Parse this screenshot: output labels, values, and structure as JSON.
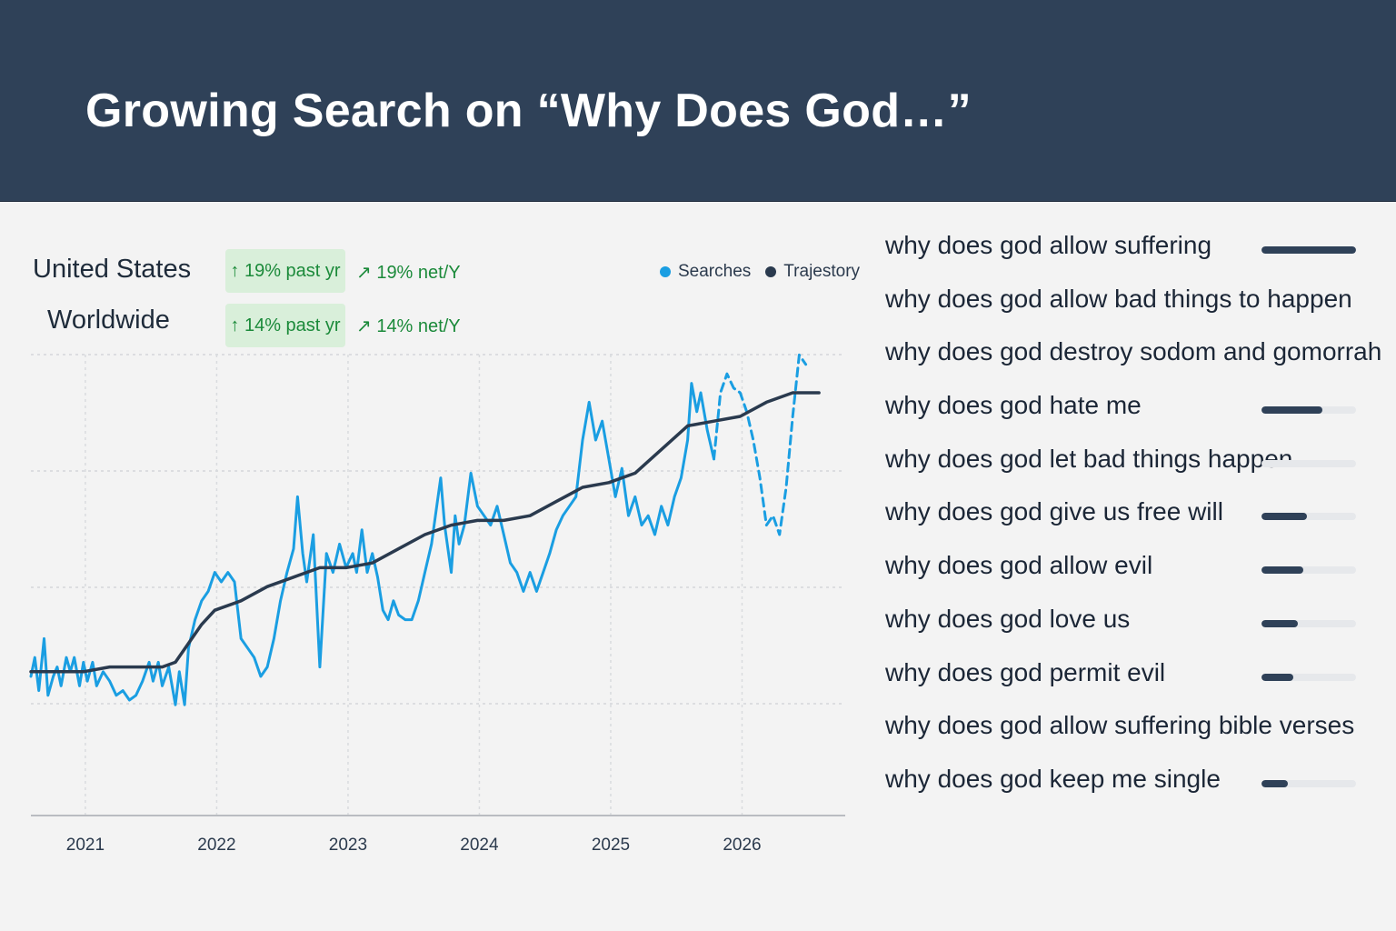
{
  "header": {
    "title": "Growing Search on “Why Does God…”"
  },
  "regions": [
    {
      "name": "United States",
      "badge": "↑ 19% past yr",
      "net": "↗ 19% net/Y"
    },
    {
      "name": "Worldwide",
      "badge": "↑ 14% past yr",
      "net": "↗ 14% net/Y"
    }
  ],
  "colors": {
    "searches": "#1a9ee2",
    "trajectory": "#2a3a4e",
    "banner": "#2f4158",
    "growth": "#1b8a3a"
  },
  "chart_data": {
    "type": "line",
    "x_ticks": [
      "2021",
      "2022",
      "2023",
      "2024",
      "2025",
      "2026"
    ],
    "xlim": [
      2020.8,
      2027.0
    ],
    "ylim": [
      0,
      100
    ],
    "grid": true,
    "legend_position": "top-right",
    "series": [
      {
        "name": "Searches",
        "style": "solid",
        "points": [
          [
            2020.8,
            30
          ],
          [
            2020.83,
            34
          ],
          [
            2020.86,
            27
          ],
          [
            2020.9,
            38
          ],
          [
            2020.93,
            26
          ],
          [
            2020.97,
            30
          ],
          [
            2021.0,
            32
          ],
          [
            2021.03,
            28
          ],
          [
            2021.07,
            34
          ],
          [
            2021.1,
            31
          ],
          [
            2021.13,
            34
          ],
          [
            2021.17,
            28
          ],
          [
            2021.2,
            33
          ],
          [
            2021.23,
            29
          ],
          [
            2021.27,
            33
          ],
          [
            2021.3,
            28
          ],
          [
            2021.35,
            31
          ],
          [
            2021.4,
            29
          ],
          [
            2021.45,
            26
          ],
          [
            2021.5,
            27
          ],
          [
            2021.55,
            25
          ],
          [
            2021.6,
            26
          ],
          [
            2021.65,
            29
          ],
          [
            2021.7,
            33
          ],
          [
            2021.73,
            29
          ],
          [
            2021.77,
            33
          ],
          [
            2021.8,
            28
          ],
          [
            2021.85,
            32
          ],
          [
            2021.9,
            24
          ],
          [
            2021.93,
            31
          ],
          [
            2021.97,
            24
          ],
          [
            2022.0,
            36
          ],
          [
            2022.05,
            42
          ],
          [
            2022.1,
            46
          ],
          [
            2022.15,
            48
          ],
          [
            2022.2,
            52
          ],
          [
            2022.25,
            50
          ],
          [
            2022.3,
            52
          ],
          [
            2022.35,
            50
          ],
          [
            2022.4,
            38
          ],
          [
            2022.45,
            36
          ],
          [
            2022.5,
            34
          ],
          [
            2022.55,
            30
          ],
          [
            2022.6,
            32
          ],
          [
            2022.65,
            38
          ],
          [
            2022.7,
            46
          ],
          [
            2022.75,
            52
          ],
          [
            2022.8,
            57
          ],
          [
            2022.83,
            68
          ],
          [
            2022.87,
            56
          ],
          [
            2022.9,
            50
          ],
          [
            2022.95,
            60
          ],
          [
            2023.0,
            32
          ],
          [
            2023.05,
            56
          ],
          [
            2023.1,
            52
          ],
          [
            2023.15,
            58
          ],
          [
            2023.2,
            53
          ],
          [
            2023.25,
            56
          ],
          [
            2023.28,
            52
          ],
          [
            2023.32,
            61
          ],
          [
            2023.36,
            52
          ],
          [
            2023.4,
            56
          ],
          [
            2023.44,
            51
          ],
          [
            2023.48,
            44
          ],
          [
            2023.52,
            42
          ],
          [
            2023.56,
            46
          ],
          [
            2023.6,
            43
          ],
          [
            2023.65,
            42
          ],
          [
            2023.7,
            42
          ],
          [
            2023.75,
            46
          ],
          [
            2023.8,
            52
          ],
          [
            2023.85,
            58
          ],
          [
            2023.88,
            64
          ],
          [
            2023.92,
            72
          ],
          [
            2023.95,
            62
          ],
          [
            2024.0,
            52
          ],
          [
            2024.03,
            64
          ],
          [
            2024.06,
            58
          ],
          [
            2024.1,
            62
          ],
          [
            2024.15,
            73
          ],
          [
            2024.2,
            66
          ],
          [
            2024.25,
            64
          ],
          [
            2024.3,
            62
          ],
          [
            2024.35,
            66
          ],
          [
            2024.4,
            60
          ],
          [
            2024.45,
            54
          ],
          [
            2024.5,
            52
          ],
          [
            2024.55,
            48
          ],
          [
            2024.6,
            52
          ],
          [
            2024.65,
            48
          ],
          [
            2024.7,
            52
          ],
          [
            2024.75,
            56
          ],
          [
            2024.8,
            61
          ],
          [
            2024.85,
            64
          ],
          [
            2024.9,
            66
          ],
          [
            2024.95,
            68
          ],
          [
            2025.0,
            80
          ],
          [
            2025.05,
            88
          ],
          [
            2025.1,
            80
          ],
          [
            2025.15,
            84
          ],
          [
            2025.2,
            76
          ],
          [
            2025.25,
            68
          ],
          [
            2025.3,
            74
          ],
          [
            2025.35,
            64
          ],
          [
            2025.4,
            68
          ],
          [
            2025.45,
            62
          ],
          [
            2025.5,
            64
          ],
          [
            2025.55,
            60
          ],
          [
            2025.6,
            66
          ],
          [
            2025.65,
            62
          ],
          [
            2025.7,
            68
          ],
          [
            2025.75,
            72
          ],
          [
            2025.8,
            80
          ],
          [
            2025.83,
            92
          ],
          [
            2025.87,
            86
          ],
          [
            2025.9,
            90
          ],
          [
            2025.95,
            82
          ],
          [
            2026.0,
            76
          ]
        ]
      },
      {
        "name": "Searches",
        "style": "dashed",
        "points": [
          [
            2026.0,
            76
          ],
          [
            2026.05,
            90
          ],
          [
            2026.1,
            94
          ],
          [
            2026.15,
            91
          ],
          [
            2026.2,
            90
          ],
          [
            2026.25,
            86
          ],
          [
            2026.3,
            80
          ],
          [
            2026.35,
            72
          ],
          [
            2026.4,
            62
          ],
          [
            2026.45,
            64
          ],
          [
            2026.5,
            60
          ],
          [
            2026.55,
            70
          ],
          [
            2026.6,
            85
          ],
          [
            2026.65,
            98
          ],
          [
            2026.7,
            96
          ]
        ]
      },
      {
        "name": "Trajestory",
        "style": "solid",
        "points": [
          [
            2020.8,
            31
          ],
          [
            2021.0,
            31
          ],
          [
            2021.2,
            31
          ],
          [
            2021.4,
            32
          ],
          [
            2021.6,
            32
          ],
          [
            2021.8,
            32
          ],
          [
            2021.9,
            33
          ],
          [
            2022.0,
            37
          ],
          [
            2022.1,
            41
          ],
          [
            2022.2,
            44
          ],
          [
            2022.4,
            46
          ],
          [
            2022.6,
            49
          ],
          [
            2022.8,
            51
          ],
          [
            2023.0,
            53
          ],
          [
            2023.2,
            53
          ],
          [
            2023.4,
            54
          ],
          [
            2023.6,
            57
          ],
          [
            2023.8,
            60
          ],
          [
            2024.0,
            62
          ],
          [
            2024.2,
            63
          ],
          [
            2024.4,
            63
          ],
          [
            2024.6,
            64
          ],
          [
            2024.8,
            67
          ],
          [
            2025.0,
            70
          ],
          [
            2025.2,
            71
          ],
          [
            2025.4,
            73
          ],
          [
            2025.6,
            78
          ],
          [
            2025.8,
            83
          ],
          [
            2026.0,
            84
          ],
          [
            2026.2,
            85
          ],
          [
            2026.4,
            88
          ],
          [
            2026.6,
            90
          ],
          [
            2026.8,
            90
          ]
        ]
      }
    ]
  },
  "top_queries": [
    {
      "label": "why does god allow suffering",
      "level": 1.0
    },
    {
      "label": "why does god allow bad things to happen",
      "level": null
    },
    {
      "label": "why does god destroy sodom and gomorrah",
      "level": null
    },
    {
      "label": "why does god hate me",
      "level": 0.64
    },
    {
      "label": "why does god let bad things happen",
      "level": 0
    },
    {
      "label": "why does god give us free will",
      "level": 0.48
    },
    {
      "label": "why does god allow evil",
      "level": 0.44
    },
    {
      "label": "why does god love us",
      "level": 0.38
    },
    {
      "label": "why does god permit evil",
      "level": 0.34
    },
    {
      "label": "why does god allow suffering bible verses",
      "level": null
    },
    {
      "label": "why does god keep me single",
      "level": 0.28
    }
  ]
}
